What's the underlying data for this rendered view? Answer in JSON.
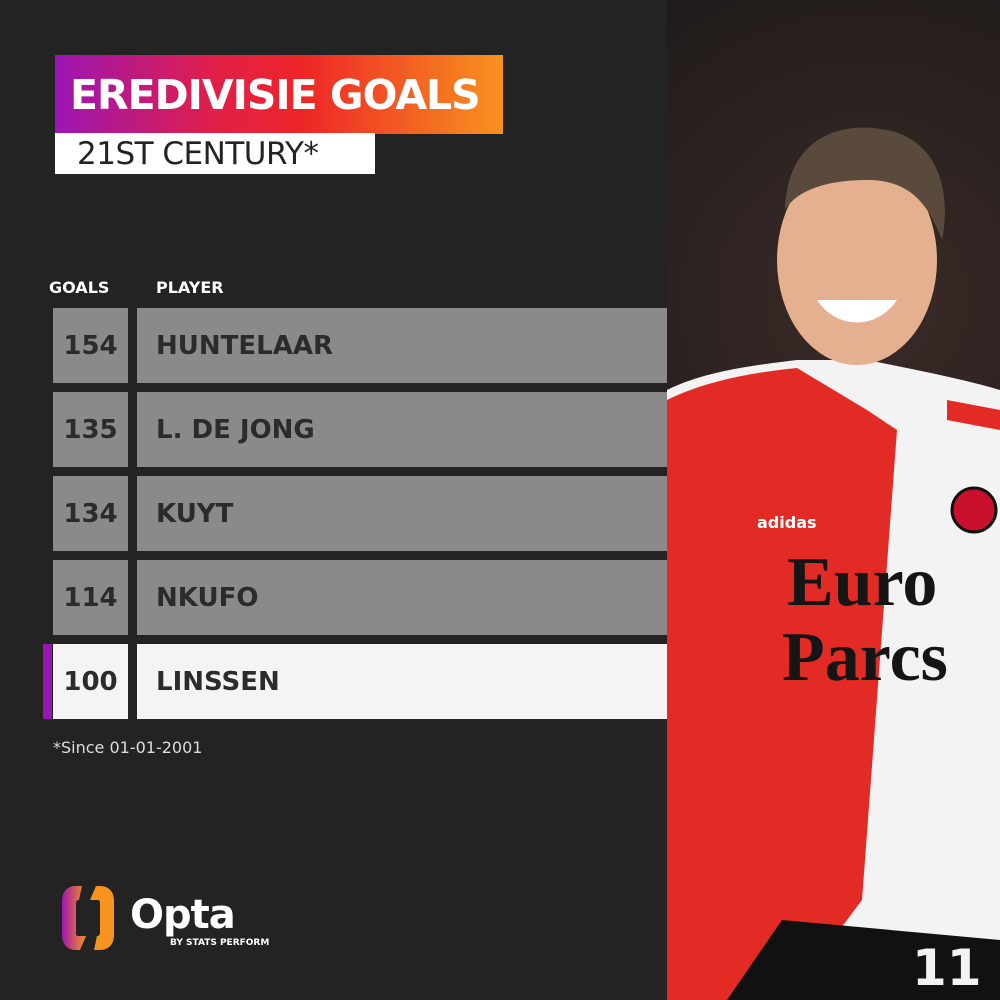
{
  "header": {
    "title": "EREDIVISIE GOALS",
    "subtitle": "21ST CENTURY*"
  },
  "table": {
    "columns": [
      "GOALS",
      "PLAYER"
    ],
    "rows": [
      {
        "goals": "154",
        "player": "HUNTELAAR",
        "highlight": false
      },
      {
        "goals": "135",
        "player": "L. DE JONG",
        "highlight": false
      },
      {
        "goals": "134",
        "player": "KUYT",
        "highlight": false
      },
      {
        "goals": "114",
        "player": "NKUFO",
        "highlight": false
      },
      {
        "goals": "100",
        "player": "LINSSEN",
        "highlight": true
      }
    ]
  },
  "footnote": "*Since 01-01-2001",
  "brand": {
    "name": "Opta",
    "tagline": "BY STATS PERFORM"
  },
  "photo": {
    "shirt_text": "Euro Parcs",
    "kit_brand": "adidas",
    "number": "11"
  },
  "colors": {
    "accent": "#9b15b5",
    "row": "#8a8a8a",
    "highlight_row": "#f4f4f4",
    "background": "#232323"
  }
}
